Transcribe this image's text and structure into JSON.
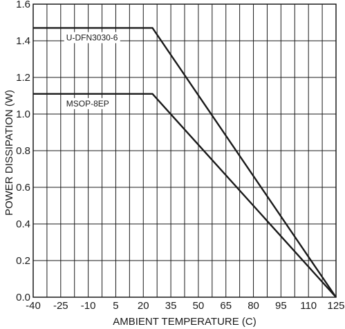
{
  "chart_data": {
    "type": "line",
    "title": "",
    "xlabel": "AMBIENT TEMPERATURE (C)",
    "ylabel": "POWER DISSIPATION (W)",
    "xlim": [
      -40,
      125
    ],
    "ylim": [
      0.0,
      1.6
    ],
    "x_ticks": [
      -40,
      -25,
      -10,
      5,
      20,
      35,
      50,
      65,
      80,
      95,
      110,
      125
    ],
    "x_tick_labels": [
      "-40",
      "-25",
      "-10",
      "5",
      "20",
      "35",
      "50",
      "65",
      "80",
      "95",
      "110",
      "125"
    ],
    "y_ticks": [
      0.0,
      0.2,
      0.4,
      0.6,
      0.8,
      1.0,
      1.2,
      1.4,
      1.6
    ],
    "y_tick_labels": [
      "0.0",
      "0.2",
      "0.4",
      "0.6",
      "0.8",
      "1.0",
      "1.2",
      "1.4",
      "1.6"
    ],
    "x_minor_grid": [
      -32.5,
      -17.5,
      -2.5,
      12.5,
      27.5,
      42.5,
      57.5,
      72.5,
      87.5,
      102.5,
      117.5
    ],
    "grid": true,
    "legend": "none",
    "series": [
      {
        "name": "U-DFN3030-6",
        "x": [
          -40,
          25,
          125
        ],
        "y": [
          1.47,
          1.47,
          0.0
        ],
        "label_at": 0.0
      },
      {
        "name": "MSOP-8EP",
        "x": [
          -40,
          25,
          125
        ],
        "y": [
          1.11,
          1.11,
          0.0
        ],
        "label_at": 0.0
      }
    ],
    "colors": {
      "line": "#1a1a1a",
      "grid": "#1a1a1a",
      "background": "#ffffff"
    }
  }
}
